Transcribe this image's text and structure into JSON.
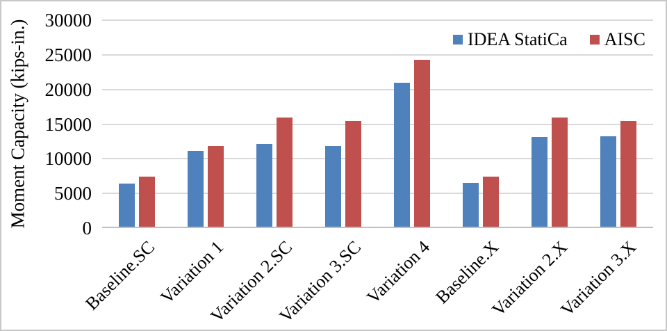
{
  "figure": {
    "border_color": "#c8c8c8",
    "background": "#ffffff"
  },
  "chart_data": {
    "type": "bar",
    "title": "",
    "xlabel": "",
    "ylabel": "Moment Capacity (kips-in.)",
    "categories": [
      "Baseline.SC",
      "Variation 1",
      "Variation 2.SC",
      "Variation 3.SC",
      "Variation 4",
      "Baseline.X",
      "Variation 2.X",
      "Variation 3.X"
    ],
    "series": [
      {
        "name": "IDEA StatiCa",
        "color": "#4F81BD",
        "values": [
          6400,
          11100,
          12100,
          11800,
          21000,
          6500,
          13100,
          13200
        ]
      },
      {
        "name": "AISC",
        "color": "#C0504D",
        "values": [
          7400,
          11800,
          16000,
          15500,
          24300,
          7400,
          16000,
          15500
        ]
      }
    ],
    "ylim": [
      0,
      30000
    ],
    "ytick_step": 5000,
    "yticks": [
      30000,
      25000,
      20000,
      15000,
      10000,
      5000,
      0
    ],
    "grid": true,
    "gridline_color": "#d9d9d9",
    "axis_line_color": "#bfbfbf",
    "legend_position": "top-right"
  }
}
